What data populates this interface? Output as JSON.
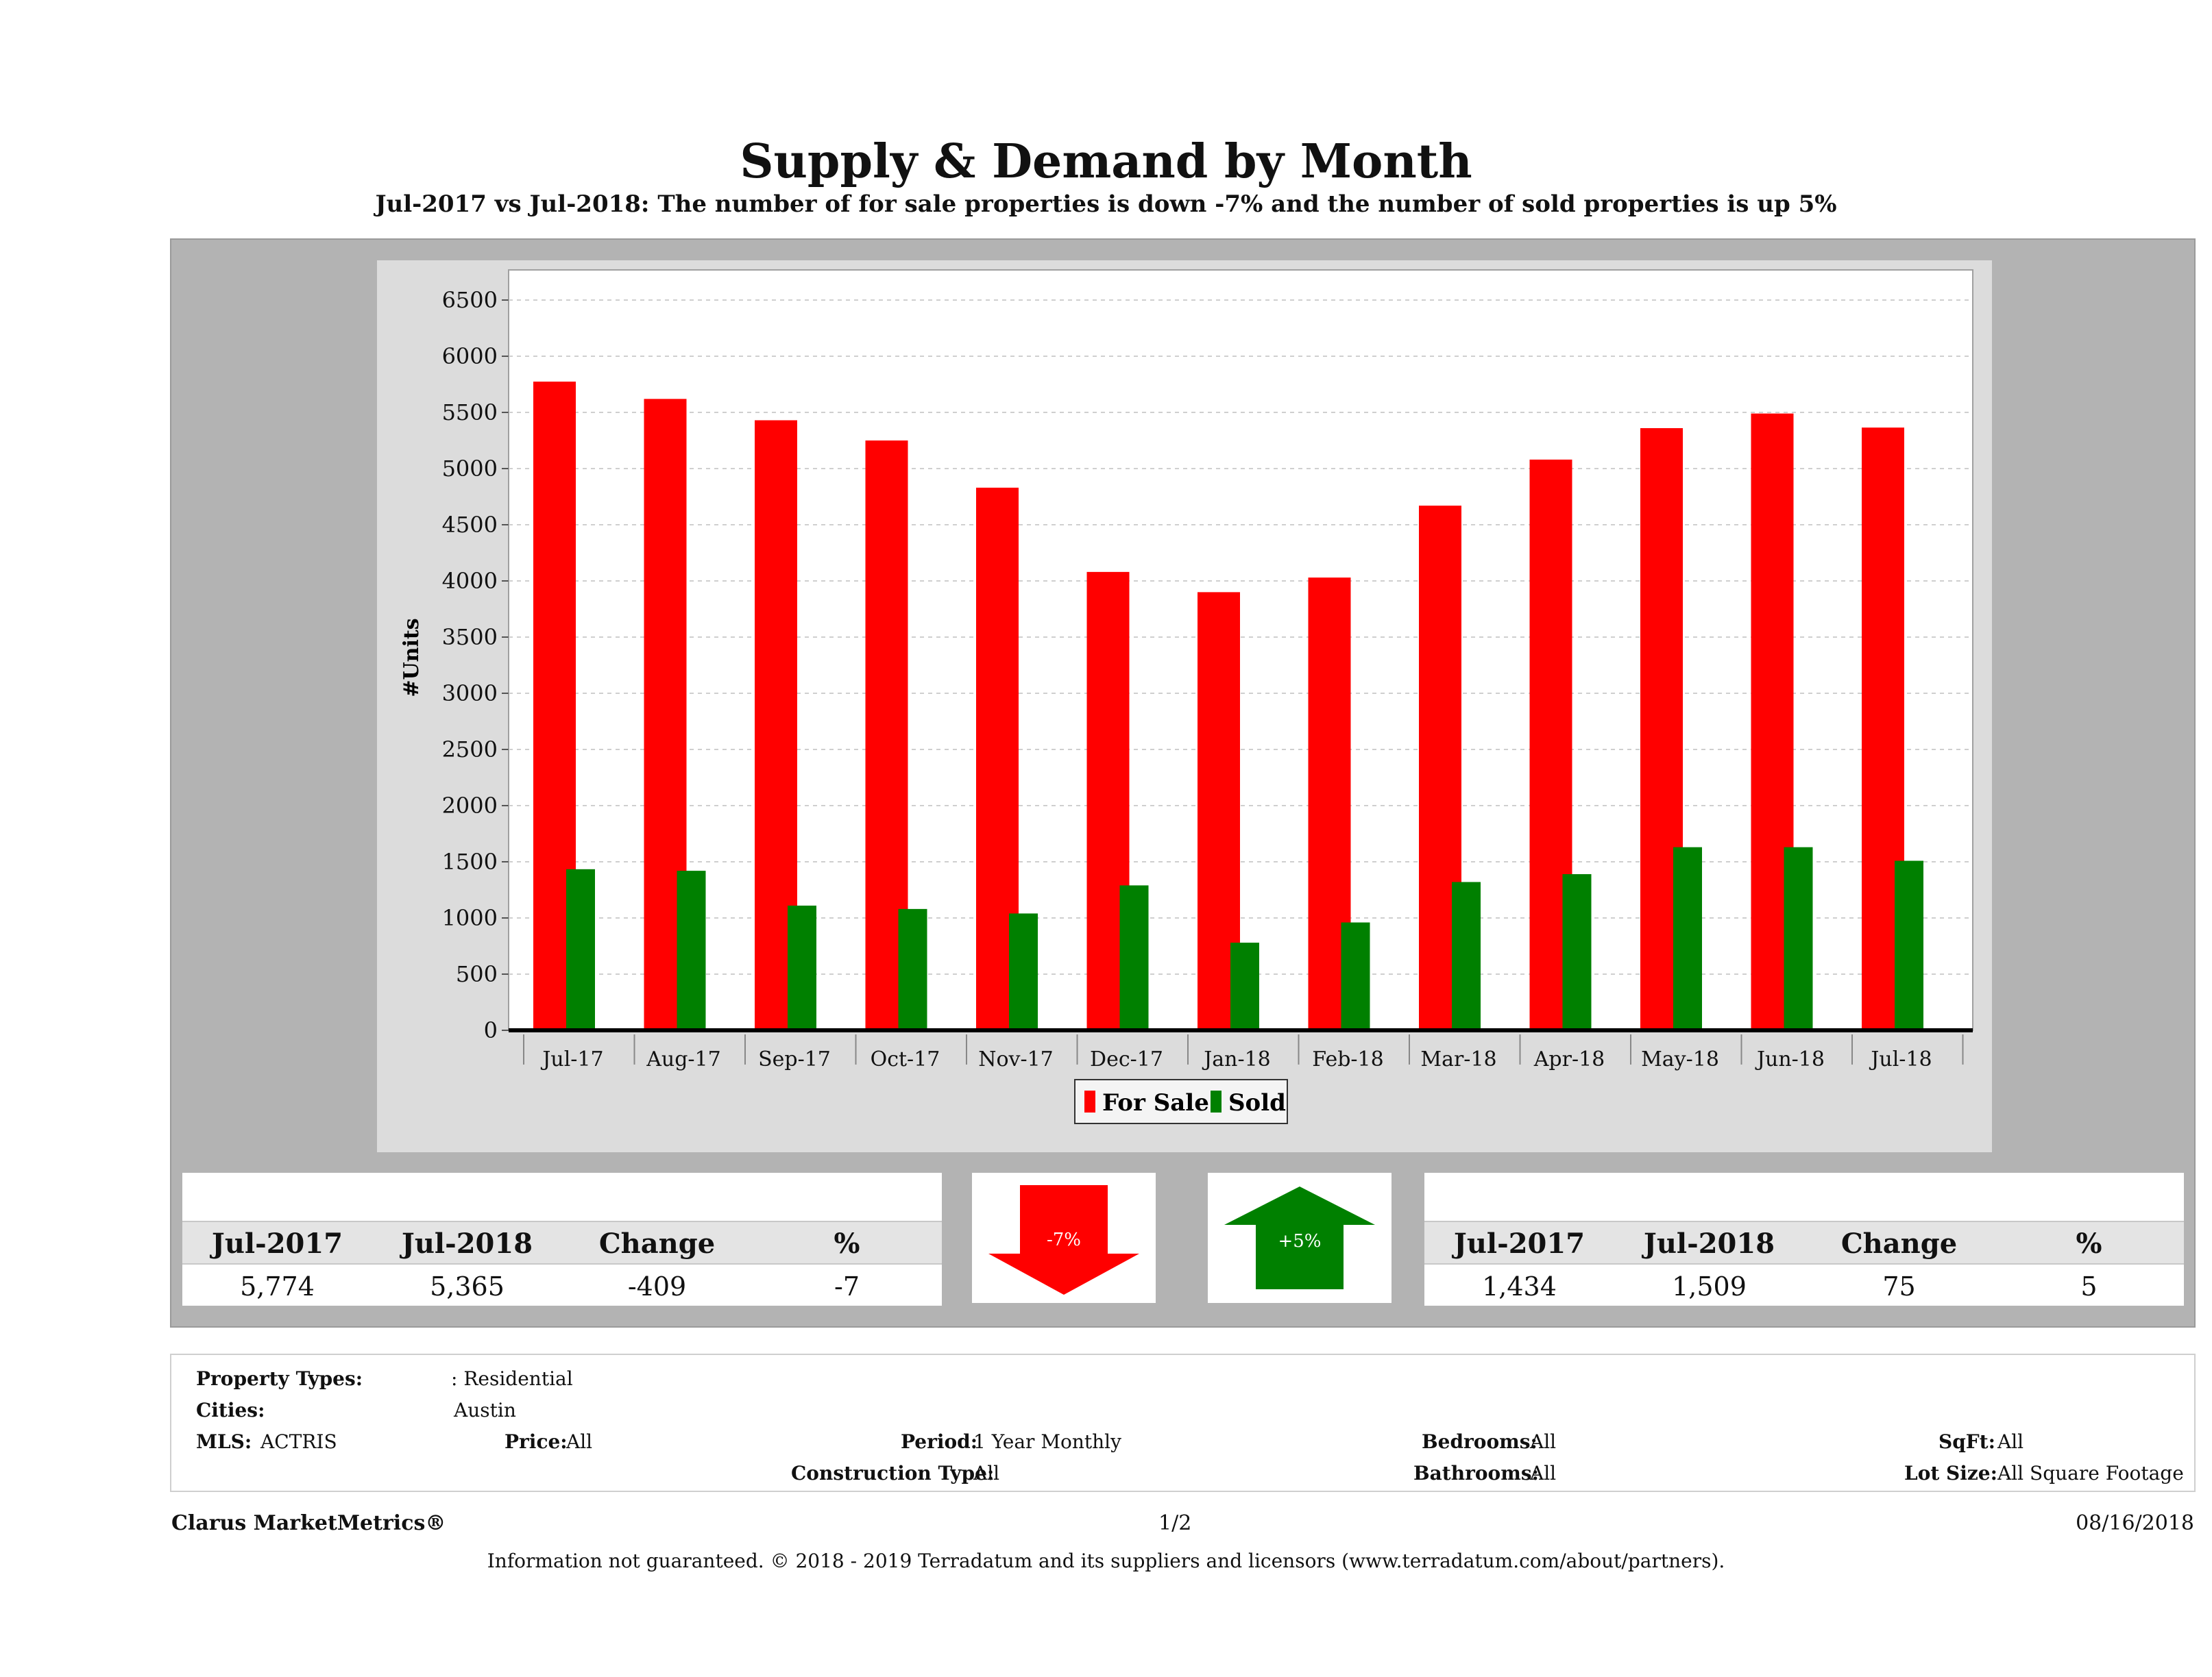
{
  "title": "Supply & Demand by Month",
  "subtitle": "Jul-2017 vs Jul-2018: The number of for sale properties is down -7% and the number of sold properties is up 5%",
  "chart_data": {
    "type": "bar",
    "ylabel": "#Units",
    "xlabel": "",
    "ylim": [
      0,
      6500
    ],
    "yticks": [
      0,
      500,
      1000,
      1500,
      2000,
      2500,
      3000,
      3500,
      4000,
      4500,
      5000,
      5500,
      6000,
      6500
    ],
    "categories": [
      "Jul-17",
      "Aug-17",
      "Sep-17",
      "Oct-17",
      "Nov-17",
      "Dec-17",
      "Jan-18",
      "Feb-18",
      "Mar-18",
      "Apr-18",
      "May-18",
      "Jun-18",
      "Jul-18"
    ],
    "series": [
      {
        "name": "For Sale",
        "color": "#ff0000",
        "values": [
          5774,
          5620,
          5430,
          5250,
          4830,
          4080,
          3900,
          4030,
          4670,
          5080,
          5360,
          5490,
          5365
        ]
      },
      {
        "name": "Sold",
        "color": "#008000",
        "values": [
          1434,
          1420,
          1110,
          1080,
          1040,
          1290,
          780,
          960,
          1320,
          1390,
          1630,
          1630,
          1509
        ]
      }
    ],
    "grid": true,
    "legend_position": "bottom"
  },
  "for_sale_table": {
    "headers": [
      "Jul-2017",
      "Jul-2018",
      "Change",
      "%"
    ],
    "values": [
      "5,774",
      "5,365",
      "-409",
      "-7"
    ]
  },
  "sold_table": {
    "headers": [
      "Jul-2017",
      "Jul-2018",
      "Change",
      "%"
    ],
    "values": [
      "1,434",
      "1,509",
      "75",
      "5"
    ]
  },
  "down_arrow": {
    "label": "-7%",
    "color": "#ff0000"
  },
  "up_arrow": {
    "label": "+5%",
    "color": "#008000"
  },
  "criteria": {
    "property_types_label": "Property Types:",
    "property_types_value": ": Residential",
    "cities_label": "Cities:",
    "cities_value": "Austin",
    "mls_label": "MLS:",
    "mls_value": "ACTRIS",
    "price_label": "Price:",
    "price_value": "All",
    "period_label": "Period:",
    "period_value": "1 Year Monthly",
    "construction_label": "Construction Type:",
    "construction_value": "All",
    "bedrooms_label": "Bedrooms:",
    "bedrooms_value": "All",
    "bathrooms_label": "Bathrooms:",
    "bathrooms_value": "All",
    "sqft_label": "SqFt:",
    "sqft_value": "All",
    "lotsize_label": "Lot Size:",
    "lotsize_value": "All Square Footage"
  },
  "footer": {
    "brand": "Clarus MarketMetrics®",
    "page": "1/2",
    "date": "08/16/2018",
    "disclaimer": "Information not guaranteed. © 2018 - 2019 Terradatum and its suppliers and licensors (www.terradatum.com/about/partners)."
  }
}
